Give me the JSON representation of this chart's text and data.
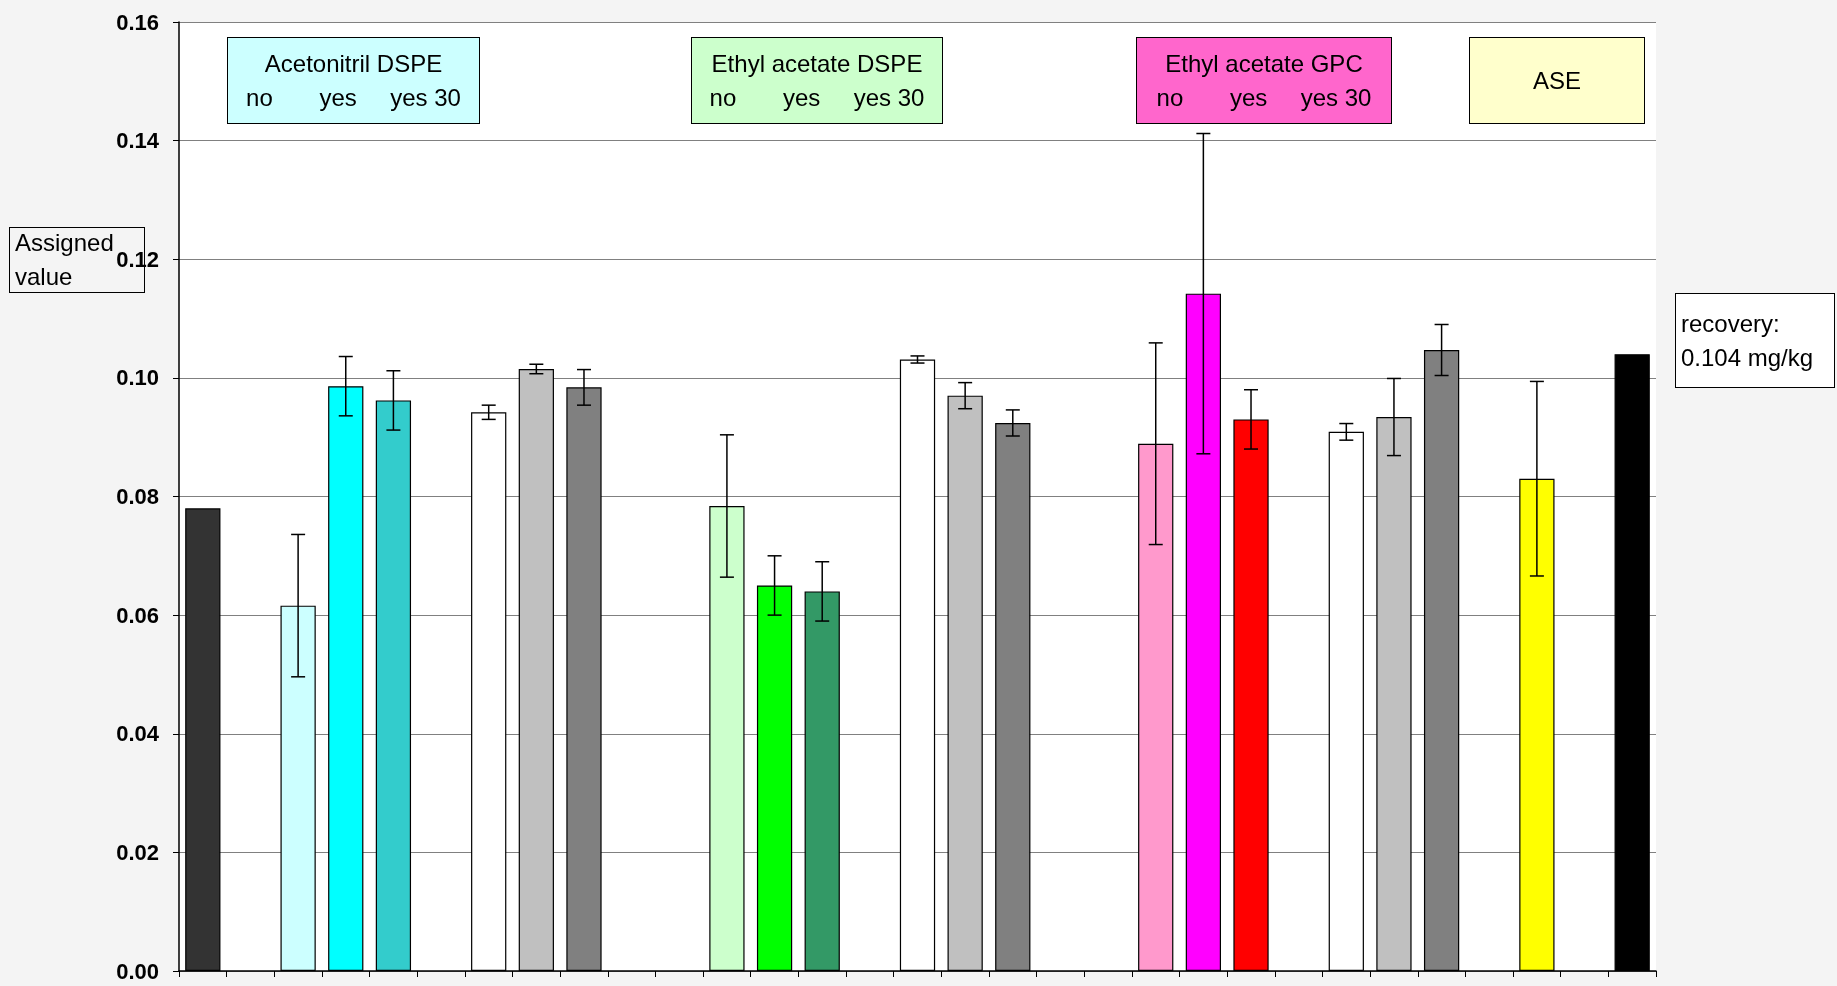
{
  "chart_data": {
    "type": "bar",
    "categories": [
      null,
      null,
      null,
      null,
      null,
      null,
      null,
      null,
      null,
      null,
      null,
      null,
      null,
      null,
      null,
      null,
      null,
      null,
      null,
      null,
      null,
      null,
      null,
      null,
      null,
      null,
      null,
      null,
      null,
      null,
      null
    ],
    "values": [
      0.078,
      null,
      0.0616,
      0.0986,
      0.0962,
      null,
      0.0942,
      0.1015,
      0.0984,
      null,
      null,
      0.0784,
      0.065,
      0.064,
      null,
      0.1031,
      0.097,
      0.0924,
      null,
      null,
      0.0889,
      0.1142,
      0.093,
      null,
      0.0909,
      0.0934,
      0.1047,
      null,
      0.083,
      null,
      0.104
    ],
    "colors": [
      "#333333",
      "#ffffff",
      "#ccffff",
      "#00ffff",
      "#33cccc",
      "#ffffff",
      "#ffffff",
      "#c0c0c0",
      "#808080",
      "#ffffff",
      "#ffffff",
      "#ccffcc",
      "#00ff00",
      "#339966",
      "#ffffff",
      "#ffffff",
      "#c0c0c0",
      "#808080",
      "#ffffff",
      "#ffffff",
      "#ff99cc",
      "#ff00ff",
      "#ff0000",
      "#ffffff",
      "#ffffff",
      "#c0c0c0",
      "#808080",
      "#ffffff",
      "#ffff00",
      "#ffffff",
      "#000000"
    ],
    "errors": [
      null,
      null,
      0.012,
      0.005,
      0.005,
      null,
      0.0012,
      0.0008,
      0.003,
      null,
      null,
      0.012,
      0.005,
      0.005,
      null,
      0.0006,
      0.0022,
      0.0022,
      null,
      null,
      0.017,
      0.027,
      0.005,
      null,
      0.0014,
      0.0065,
      0.0043,
      null,
      0.0164,
      null,
      null
    ],
    "ylim": [
      0,
      0.16
    ],
    "yticks": [
      {
        "value": 0,
        "label": "0.00"
      },
      0.02,
      0.04,
      0.06,
      0.08,
      {
        "value": 0.1,
        "label": "0.10"
      },
      0.12,
      0.14,
      0.16
    ],
    "grid": "y",
    "annotations": [
      "Acetonitril DSPE\nno       yes     yes 30",
      "Ethyl acetate DSPE\nno       yes     yes 30",
      "Ethyl acetate GPC\nno       yes     yes 30",
      "ASE",
      "Assigned\nvalue",
      "recovery:\n0.104 mg/kg"
    ]
  }
}
